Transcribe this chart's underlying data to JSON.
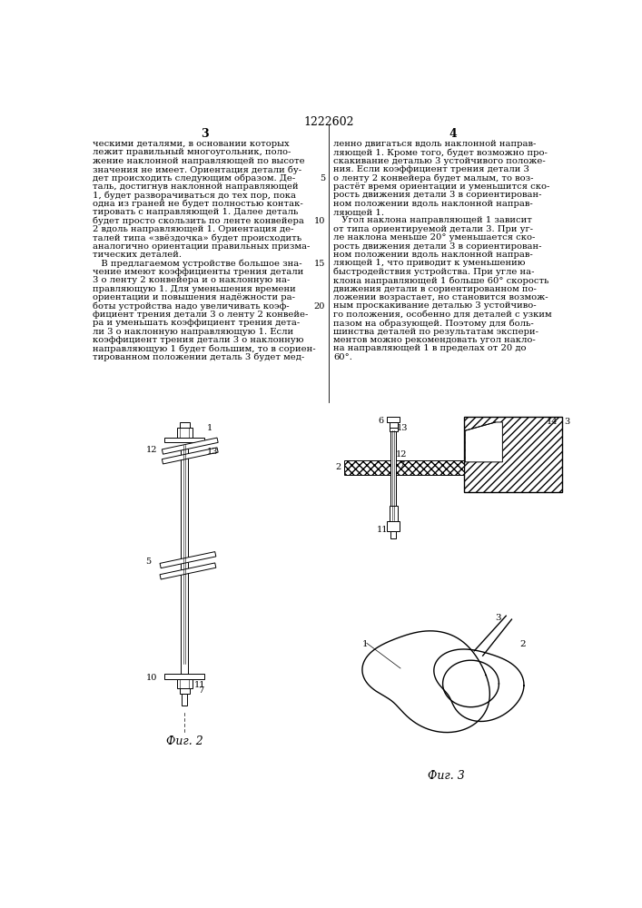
{
  "page_number": "1222602",
  "col_left_number": "3",
  "col_right_number": "4",
  "line_numbers": [
    5,
    10,
    15,
    20
  ],
  "col_left_text": [
    "ческими деталями, в основании которых",
    "лежит правильный многоугольник, поло-",
    "жение наклонной направляющей по высоте",
    "значения не имеет. Ориентация детали бу-",
    "дет происходить следующим образом. Де-",
    "таль, достигнув наклонной направляющей",
    "1, будет разворачиваться до тех пор, пока",
    "одна из граней не будет полностью контак-",
    "тировать с направляющей 1. Далее деталь",
    "будет просто скользить по ленте конвейера",
    "2 вдоль направляющей 1. Ориентация де-",
    "талей типа «звёздочка» будет происходить",
    "аналогично ориентации правильных призма-",
    "тических деталей.",
    "   В предлагаемом устройстве большое зна-",
    "чение имеют коэффициенты трения детали",
    "3 о ленту 2 конвейера и о наклонную на-",
    "правляющую 1. Для уменьшения времени",
    "ориентации и повышения надёжности ра-",
    "боты устройства надо увеличивать коэф-",
    "фициент трения детали 3 о ленту 2 конвейе-",
    "ра и уменьшать коэффициент трения дета-",
    "ли 3 о наклонную направляющую 1. Если",
    "коэффициент трения детали 3 о наклонную",
    "направляющую 1 будет большим, то в сориен-",
    "тированном положении деталь 3 будет мед-"
  ],
  "col_right_text": [
    "ленно двигаться вдоль наклонной направ-",
    "ляющей 1. Кроме того, будет возможно про-",
    "скакивание деталью 3 устойчивого положе-",
    "ния. Если коэффициент трения детали 3",
    "о ленту 2 конвейера будет малым, то воз-",
    "растёт время ориентации и уменьшится ско-",
    "рость движения детали 3 в сориентирован-",
    "ном положении вдоль наклонной направ-",
    "ляющей 1.",
    "   Угол наклона направляющей 1 зависит",
    "от типа ориентируемой детали 3. При уг-",
    "ле наклона меньше 20° уменьшается ско-",
    "рость движения детали 3 в сориентирован-",
    "ном положении вдоль наклонной направ-",
    "ляющей 1, что приводит к уменьшению",
    "быстродействия устройства. При угле на-",
    "клона направляющей 1 больше 60° скорость",
    "движения детали в сориентированном по-",
    "ложении возрастает, но становится возмож-",
    "ным проскакивание деталью 3 устойчиво-",
    "го положения, особенно для деталей с узким",
    "пазом на образующей. Поэтому для боль-",
    "шинства деталей по результатам экспери-",
    "ментов можно рекомендовать угол накло-",
    "на направляющей 1 в пределах от 20 до",
    "60°."
  ],
  "fig2_caption": "Фиг. 2",
  "fig3_caption": "Фиг. 3",
  "bg_color": "#ffffff",
  "text_color": "#000000",
  "font_size_body": 7.2,
  "font_size_header": 9.0,
  "font_size_caption": 9.0
}
